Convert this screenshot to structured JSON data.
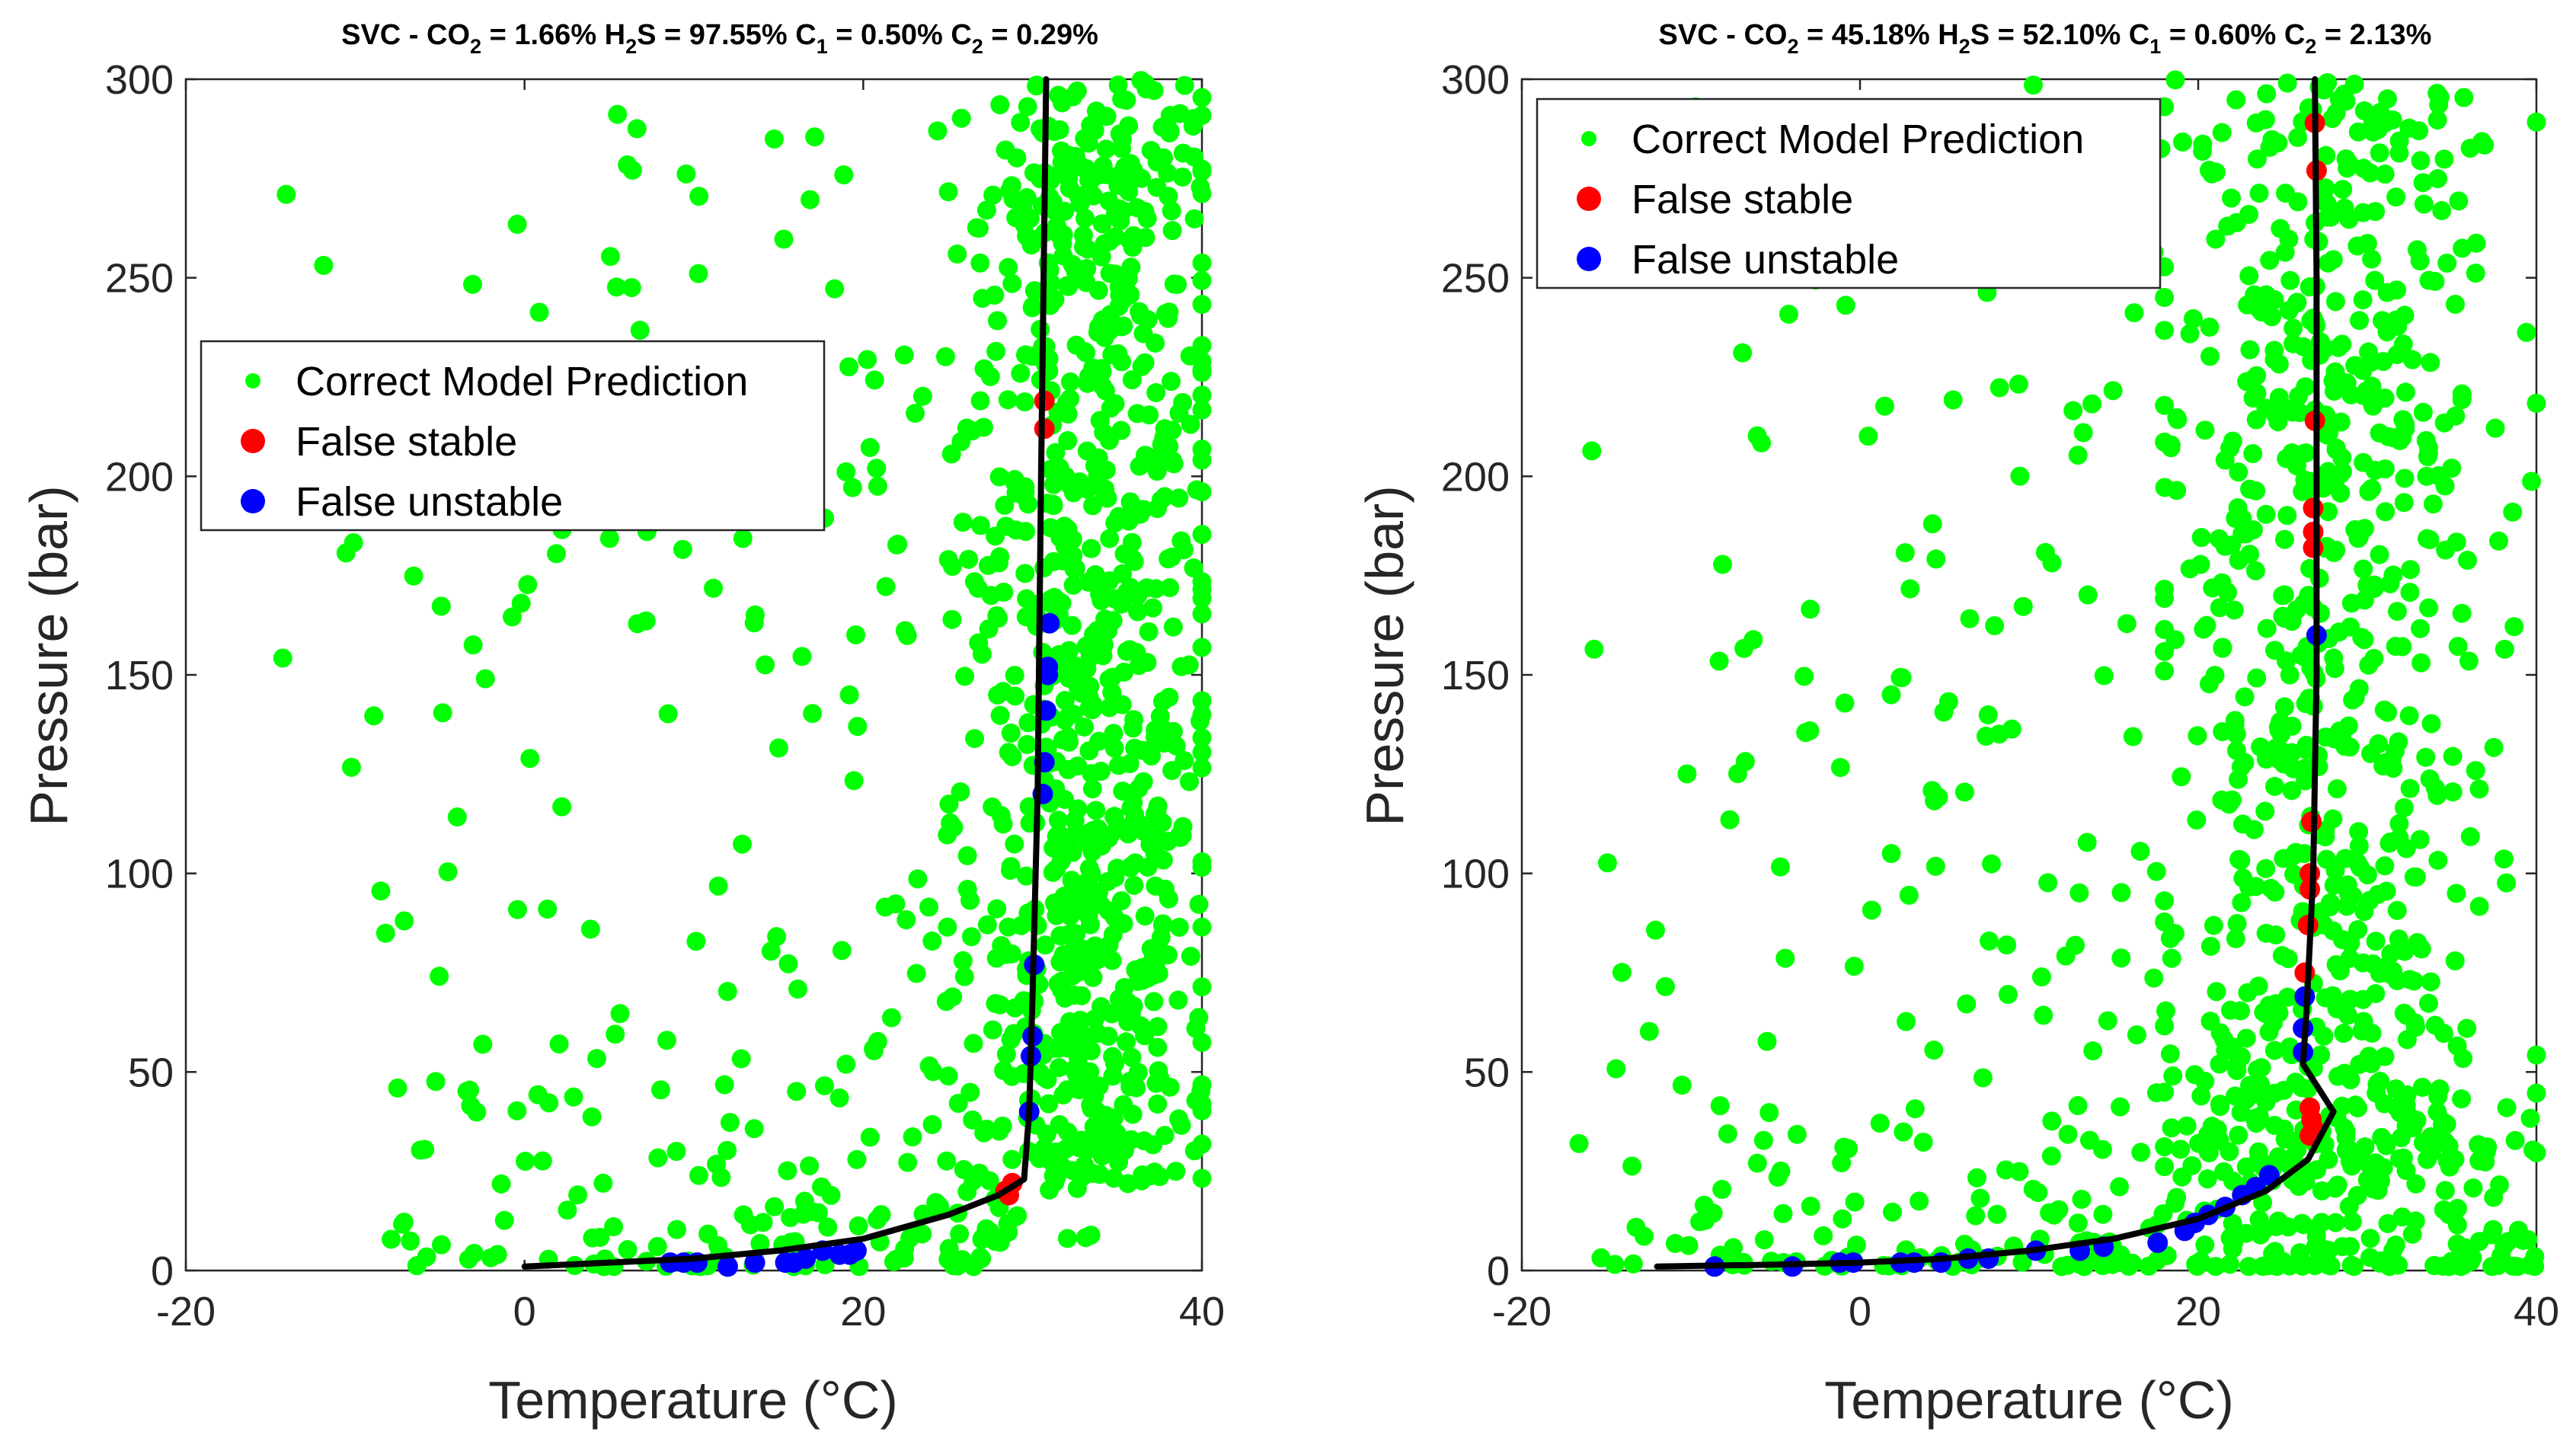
{
  "colors": {
    "correct": "#00ff00",
    "false_stable": "#ff0000",
    "false_unstable": "#0000ff",
    "curve": "#000000",
    "axes": "#262626"
  },
  "chart_data": [
    {
      "type": "scatter",
      "title_parts": {
        "prefix": "SVC - CO",
        "sub1": "2",
        "mid1": " = 1.66% H",
        "sub2": "2",
        "mid2": "S = 97.55% C",
        "sub3": "1",
        "mid3": " = 0.50% C",
        "sub4": "2",
        "suffix": " = 0.29%"
      },
      "xlabel": "Temperature (°C)",
      "ylabel": "Pressure (bar)",
      "xlim": [
        -20,
        40
      ],
      "ylim": [
        0,
        300
      ],
      "xticks": [
        -20,
        0,
        20,
        40
      ],
      "yticks": [
        0,
        50,
        100,
        150,
        200,
        250,
        300
      ],
      "xtick_labels": [
        "-20",
        "0",
        "20",
        "40"
      ],
      "ytick_labels": [
        "0",
        "50",
        "100",
        "150",
        "200",
        "250",
        "300"
      ],
      "legend": {
        "entries": [
          "Correct Model Prediction",
          "False stable",
          "False unstable"
        ],
        "location": "center-left"
      },
      "series": [
        {
          "name": "Correct Model Prediction",
          "description": "roughly 1100 scattered points, dense between 22 and 40 °C at all pressures and sparse at low temperature",
          "approx_count": 1100
        },
        {
          "name": "False stable",
          "points": [
            [
              30.7,
              219
            ],
            [
              30.7,
              212
            ],
            [
              28.8,
              22
            ],
            [
              28.6,
              19
            ],
            [
              28.4,
              20
            ]
          ]
        },
        {
          "name": "False unstable",
          "points": [
            [
              31.0,
              163
            ],
            [
              30.9,
              152
            ],
            [
              30.9,
              150
            ],
            [
              30.8,
              141
            ],
            [
              30.7,
              128
            ],
            [
              30.6,
              120
            ],
            [
              30.1,
              77
            ],
            [
              30.0,
              59
            ],
            [
              29.9,
              54
            ],
            [
              29.8,
              40
            ],
            [
              19.6,
              5
            ],
            [
              19.2,
              4
            ],
            [
              18.6,
              4
            ],
            [
              17.6,
              5
            ],
            [
              16.6,
              3
            ],
            [
              15.9,
              2
            ],
            [
              15.4,
              2
            ],
            [
              13.6,
              2
            ],
            [
              12.0,
              1
            ],
            [
              10.2,
              2
            ],
            [
              9.4,
              2
            ],
            [
              8.6,
              2
            ]
          ]
        },
        {
          "name": "Phase boundary",
          "type": "line",
          "points": [
            [
              0,
              1
            ],
            [
              5,
              2
            ],
            [
              10,
              3
            ],
            [
              15,
              5
            ],
            [
              20,
              8
            ],
            [
              25,
              14
            ],
            [
              28,
              19
            ],
            [
              29.5,
              23
            ],
            [
              29.8,
              40
            ],
            [
              30.0,
              70
            ],
            [
              30.3,
              120
            ],
            [
              30.5,
              200
            ],
            [
              30.8,
              300
            ]
          ]
        }
      ]
    },
    {
      "type": "scatter",
      "title_parts": {
        "prefix": "SVC - CO",
        "sub1": "2",
        "mid1": " = 45.18% H",
        "sub2": "2",
        "mid2": "S = 52.10% C",
        "sub3": "1",
        "mid3": " = 0.60% C",
        "sub4": "2",
        "suffix": " = 2.13%"
      },
      "xlabel": "Temperature (°C)",
      "ylabel": "Pressure (bar)",
      "xlim": [
        -20,
        40
      ],
      "ylim": [
        0,
        300
      ],
      "xticks": [
        -20,
        0,
        20,
        40
      ],
      "yticks": [
        0,
        50,
        100,
        150,
        200,
        250,
        300
      ],
      "xtick_labels": [
        "-20",
        "0",
        "20",
        "40"
      ],
      "ytick_labels": [
        "0",
        "50",
        "100",
        "150",
        "200",
        "250",
        "300"
      ],
      "legend": {
        "entries": [
          "Correct Model Prediction",
          "False stable",
          "False unstable"
        ],
        "location": "top-left"
      },
      "series": [
        {
          "name": "Correct Model Prediction",
          "description": "roughly 1150 scattered points, dense between 18 and 40 °C at all pressures and at low pressure across the whole temperature range",
          "approx_count": 1150
        },
        {
          "name": "False stable",
          "points": [
            [
              26.9,
              289
            ],
            [
              27.0,
              277
            ],
            [
              26.9,
              214
            ],
            [
              26.8,
              192
            ],
            [
              26.8,
              186
            ],
            [
              26.8,
              182
            ],
            [
              26.7,
              113
            ],
            [
              26.6,
              100
            ],
            [
              26.6,
              96
            ],
            [
              26.5,
              87
            ],
            [
              26.3,
              75
            ],
            [
              26.6,
              41
            ],
            [
              26.7,
              38
            ],
            [
              26.8,
              36
            ],
            [
              26.6,
              34
            ]
          ]
        },
        {
          "name": "False unstable",
          "points": [
            [
              27.0,
              160
            ],
            [
              26.3,
              69
            ],
            [
              26.2,
              61
            ],
            [
              26.2,
              55
            ],
            [
              24.2,
              24
            ],
            [
              23.4,
              21
            ],
            [
              22.6,
              19
            ],
            [
              21.6,
              16
            ],
            [
              20.6,
              14
            ],
            [
              19.8,
              12
            ],
            [
              19.2,
              10
            ],
            [
              17.6,
              7
            ],
            [
              14.4,
              6
            ],
            [
              13.0,
              5
            ],
            [
              10.4,
              5
            ],
            [
              7.6,
              3
            ],
            [
              6.4,
              3
            ],
            [
              4.8,
              2
            ],
            [
              3.2,
              2
            ],
            [
              2.4,
              2
            ],
            [
              -0.4,
              2
            ],
            [
              -1.2,
              2
            ],
            [
              -4.0,
              1
            ],
            [
              -8.6,
              1
            ]
          ]
        },
        {
          "name": "Phase boundary",
          "type": "line",
          "points": [
            [
              -12,
              1
            ],
            [
              -5,
              1.5
            ],
            [
              0,
              2
            ],
            [
              5,
              3
            ],
            [
              10,
              5
            ],
            [
              15,
              8
            ],
            [
              20,
              13
            ],
            [
              24,
              20
            ],
            [
              26.5,
              28
            ],
            [
              28,
              40
            ],
            [
              26.2,
              52
            ],
            [
              26.4,
              65
            ],
            [
              26.8,
              100
            ],
            [
              27.0,
              150
            ],
            [
              27.0,
              200
            ],
            [
              27.0,
              250
            ],
            [
              26.9,
              300
            ]
          ]
        }
      ]
    }
  ]
}
